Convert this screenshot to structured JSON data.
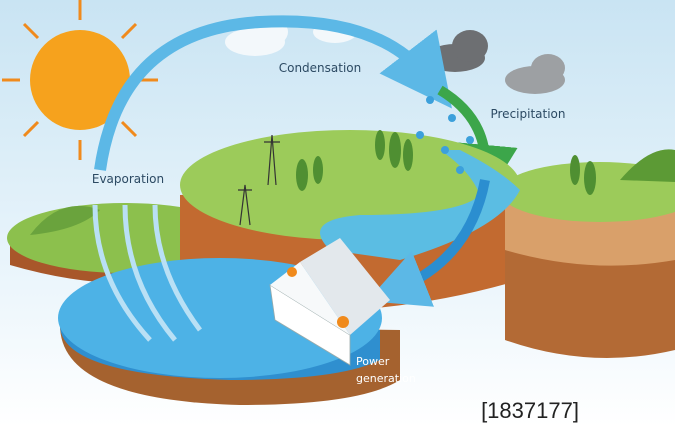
{
  "labels": {
    "condensation": "Condensation",
    "precipitation": "Precipitation",
    "evaporation": "Evaporation",
    "power_generation": {
      "lines": [
        "Power",
        "generation"
      ]
    },
    "image_id": "[1837177]"
  }
}
